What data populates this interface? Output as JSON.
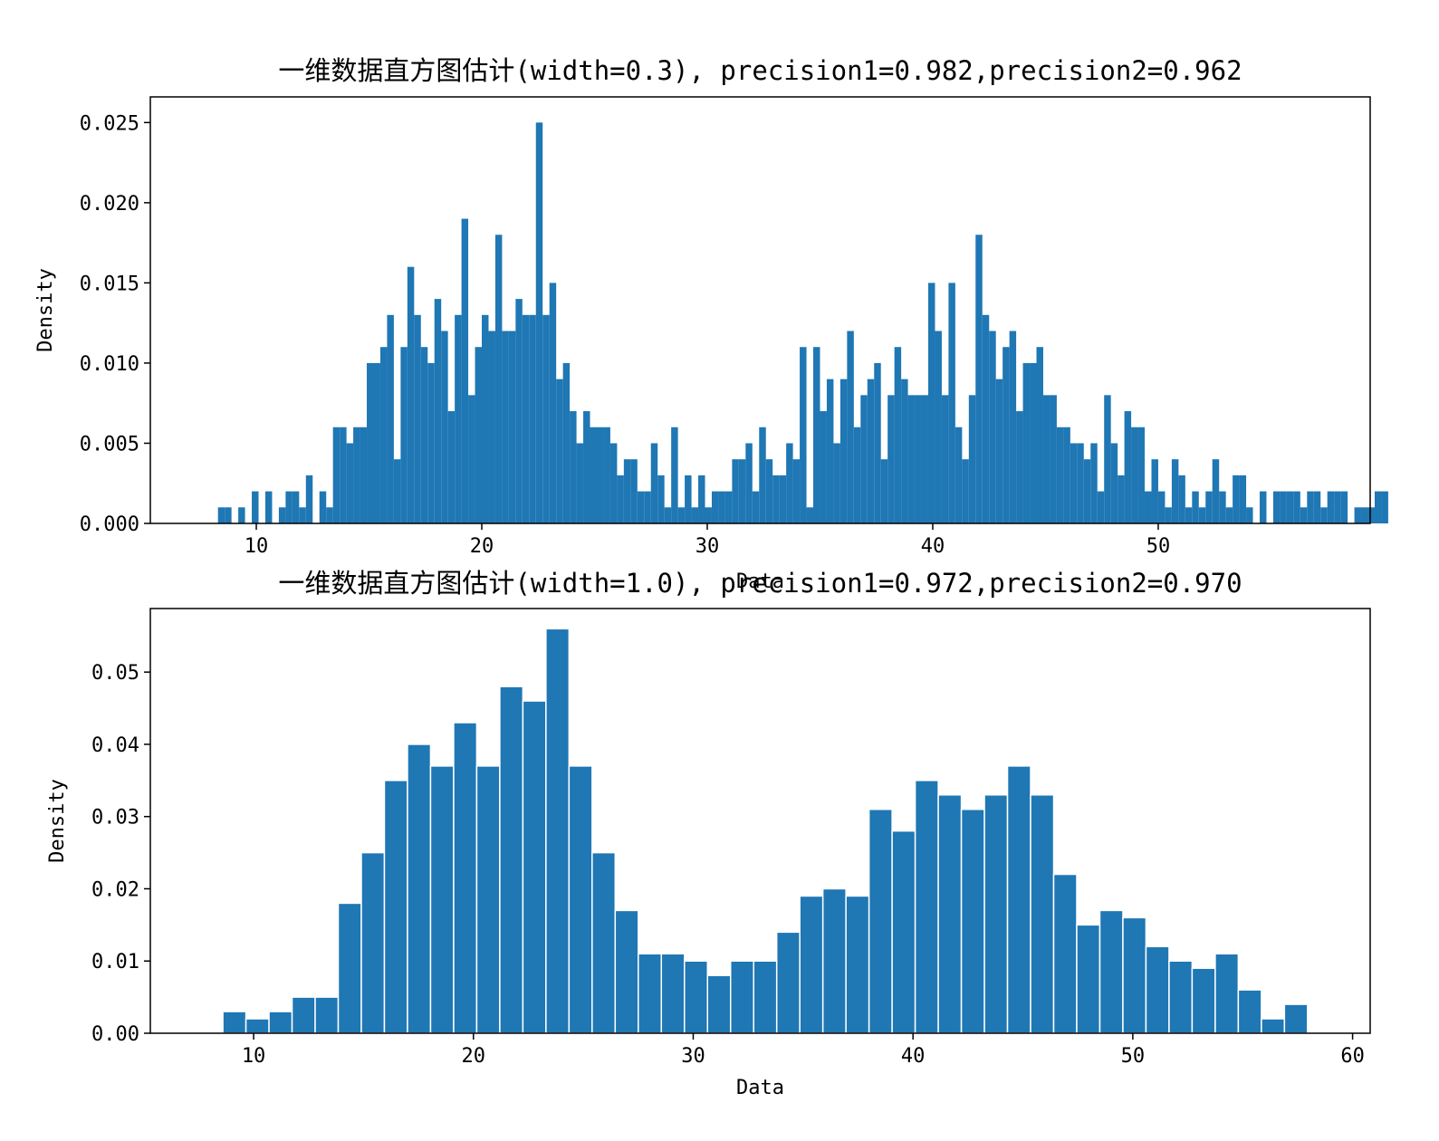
{
  "chart_data": [
    {
      "type": "bar",
      "title": "一维数据直方图估计(width=0.3), precision1=0.982,precision2=0.962",
      "xlabel": "Data",
      "ylabel": "Density",
      "xlim": [
        5.3,
        59.4
      ],
      "ylim": [
        0,
        0.0266
      ],
      "xticks": [
        10,
        20,
        30,
        40,
        50
      ],
      "yticks": [
        0.0,
        0.005,
        0.01,
        0.015,
        0.02,
        0.025
      ],
      "ytick_labels": [
        "0.000",
        "0.005",
        "0.010",
        "0.015",
        "0.020",
        "0.025"
      ],
      "grid": false,
      "bar_color": "#1f77b4",
      "bin_start": 8.3,
      "bin_width": 0.3,
      "values": [
        0.001,
        0.001,
        0,
        0.001,
        0,
        0.002,
        0,
        0.002,
        0,
        0.001,
        0.002,
        0.002,
        0.001,
        0.003,
        0,
        0.002,
        0.001,
        0.006,
        0.006,
        0.005,
        0.006,
        0.006,
        0.01,
        0.01,
        0.011,
        0.013,
        0.004,
        0.011,
        0.016,
        0.013,
        0.011,
        0.01,
        0.014,
        0.012,
        0.007,
        0.013,
        0.019,
        0.008,
        0.011,
        0.013,
        0.012,
        0.018,
        0.012,
        0.012,
        0.014,
        0.013,
        0.013,
        0.025,
        0.013,
        0.015,
        0.009,
        0.01,
        0.007,
        0.005,
        0.007,
        0.006,
        0.006,
        0.006,
        0.005,
        0.003,
        0.004,
        0.004,
        0.002,
        0.002,
        0.005,
        0.003,
        0.001,
        0.006,
        0.001,
        0.003,
        0.001,
        0.003,
        0.001,
        0.002,
        0.002,
        0.002,
        0.004,
        0.004,
        0.005,
        0.002,
        0.006,
        0.004,
        0.003,
        0.003,
        0.005,
        0.004,
        0.011,
        0.001,
        0.011,
        0.007,
        0.009,
        0.005,
        0.009,
        0.012,
        0.006,
        0.008,
        0.009,
        0.01,
        0.004,
        0.008,
        0.011,
        0.009,
        0.008,
        0.008,
        0.008,
        0.015,
        0.012,
        0.008,
        0.015,
        0.006,
        0.004,
        0.008,
        0.018,
        0.013,
        0.012,
        0.009,
        0.011,
        0.012,
        0.007,
        0.01,
        0.01,
        0.011,
        0.008,
        0.008,
        0.006,
        0.006,
        0.005,
        0.005,
        0.004,
        0.005,
        0.002,
        0.008,
        0.005,
        0.003,
        0.007,
        0.006,
        0.006,
        0.002,
        0.004,
        0.002,
        0.001,
        0.004,
        0.003,
        0.001,
        0.002,
        0.001,
        0.002,
        0.004,
        0.002,
        0.001,
        0.003,
        0.003,
        0.001,
        0,
        0.002,
        0,
        0.002,
        0.002,
        0.002,
        0.002,
        0.001,
        0.002,
        0.002,
        0.001,
        0.002,
        0.002,
        0.002,
        0,
        0.001,
        0.001,
        0.001,
        0.002,
        0.002
      ]
    },
    {
      "type": "bar",
      "title": "一维数据直方图估计(width=1.0), precision1=0.972,precision2=0.970",
      "xlabel": "Data",
      "ylabel": "Density",
      "xlim": [
        5.3,
        60.8
      ],
      "ylim": [
        0,
        0.0588
      ],
      "xticks": [
        10,
        20,
        30,
        40,
        50,
        60
      ],
      "yticks": [
        0.0,
        0.01,
        0.02,
        0.03,
        0.04,
        0.05
      ],
      "ytick_labels": [
        "0.00",
        "0.01",
        "0.02",
        "0.03",
        "0.04",
        "0.05"
      ],
      "grid": false,
      "bar_color": "#1f77b4",
      "bin_start": 8.6,
      "bin_width": 1.05,
      "values": [
        0.003,
        0.002,
        0.003,
        0.005,
        0.005,
        0.018,
        0.025,
        0.035,
        0.04,
        0.037,
        0.043,
        0.037,
        0.048,
        0.046,
        0.056,
        0.037,
        0.025,
        0.017,
        0.011,
        0.011,
        0.01,
        0.008,
        0.01,
        0.01,
        0.014,
        0.019,
        0.02,
        0.019,
        0.031,
        0.028,
        0.035,
        0.033,
        0.031,
        0.033,
        0.037,
        0.033,
        0.022,
        0.015,
        0.017,
        0.016,
        0.012,
        0.01,
        0.009,
        0.011,
        0.006,
        0.002,
        0.004
      ]
    }
  ]
}
